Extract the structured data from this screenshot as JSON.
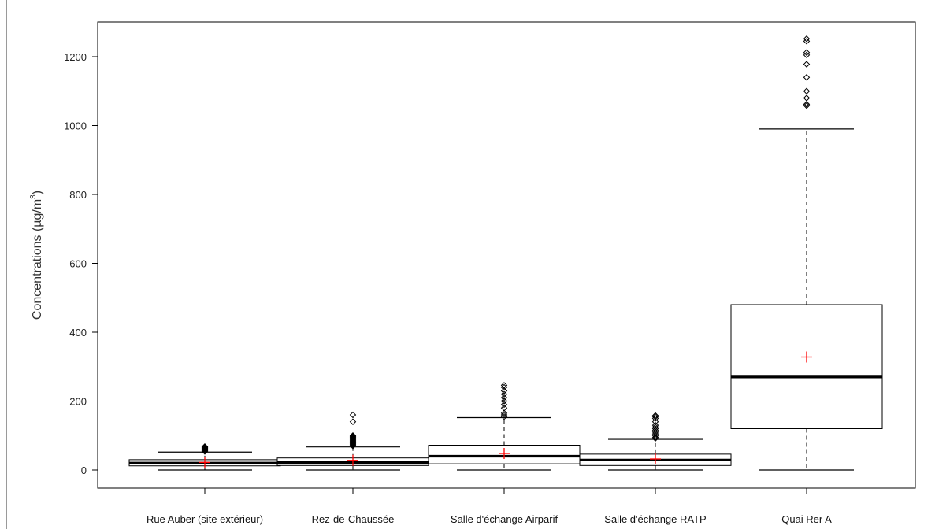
{
  "chart_data": {
    "type": "boxplot",
    "title": "",
    "xlabel": "",
    "ylabel": "Concentrations (µg/m",
    "ylabel_superscript": "3",
    "ylabel_suffix": ")",
    "ylim": [
      -35,
      1290
    ],
    "yticks": [
      0,
      200,
      400,
      600,
      800,
      1000,
      1200
    ],
    "grid": false,
    "mean_marker": "+",
    "mean_color": "#ff0000",
    "categories": [
      "Rue Auber (site extérieur)",
      "Rez-de-Chaussée",
      "Salle d'échange Airparif",
      "Salle d'échange RATP",
      "Quai Rer A"
    ],
    "boxes": [
      {
        "whisker_low": 0,
        "q1": 12,
        "median": 20,
        "q3": 30,
        "whisker_high": 52,
        "mean": 22,
        "outliers": [
          54,
          55,
          56,
          57,
          58,
          59,
          60,
          61,
          62,
          63,
          64,
          65,
          66,
          67,
          68
        ]
      },
      {
        "whisker_low": 0,
        "q1": 13,
        "median": 22,
        "q3": 35,
        "whisker_high": 67,
        "mean": 28,
        "outliers": [
          70,
          72,
          74,
          76,
          78,
          80,
          82,
          84,
          86,
          88,
          90,
          92,
          94,
          96,
          98,
          100,
          140,
          160
        ]
      },
      {
        "whisker_low": 0,
        "q1": 18,
        "median": 40,
        "q3": 72,
        "whisker_high": 152,
        "mean": 48,
        "outliers": [
          155,
          160,
          165,
          180,
          190,
          200,
          210,
          220,
          230,
          240,
          246
        ]
      },
      {
        "whisker_low": 0,
        "q1": 13,
        "median": 29,
        "q3": 46,
        "whisker_high": 89,
        "mean": 32,
        "outliers": [
          92,
          95,
          100,
          105,
          110,
          115,
          120,
          125,
          130,
          140,
          150,
          155,
          158
        ]
      },
      {
        "whisker_low": 0,
        "q1": 120,
        "median": 270,
        "q3": 480,
        "whisker_high": 990,
        "mean": 328,
        "outliers": [
          1058,
          1062,
          1080,
          1100,
          1140,
          1178,
          1205,
          1212,
          1245,
          1252
        ]
      }
    ]
  }
}
